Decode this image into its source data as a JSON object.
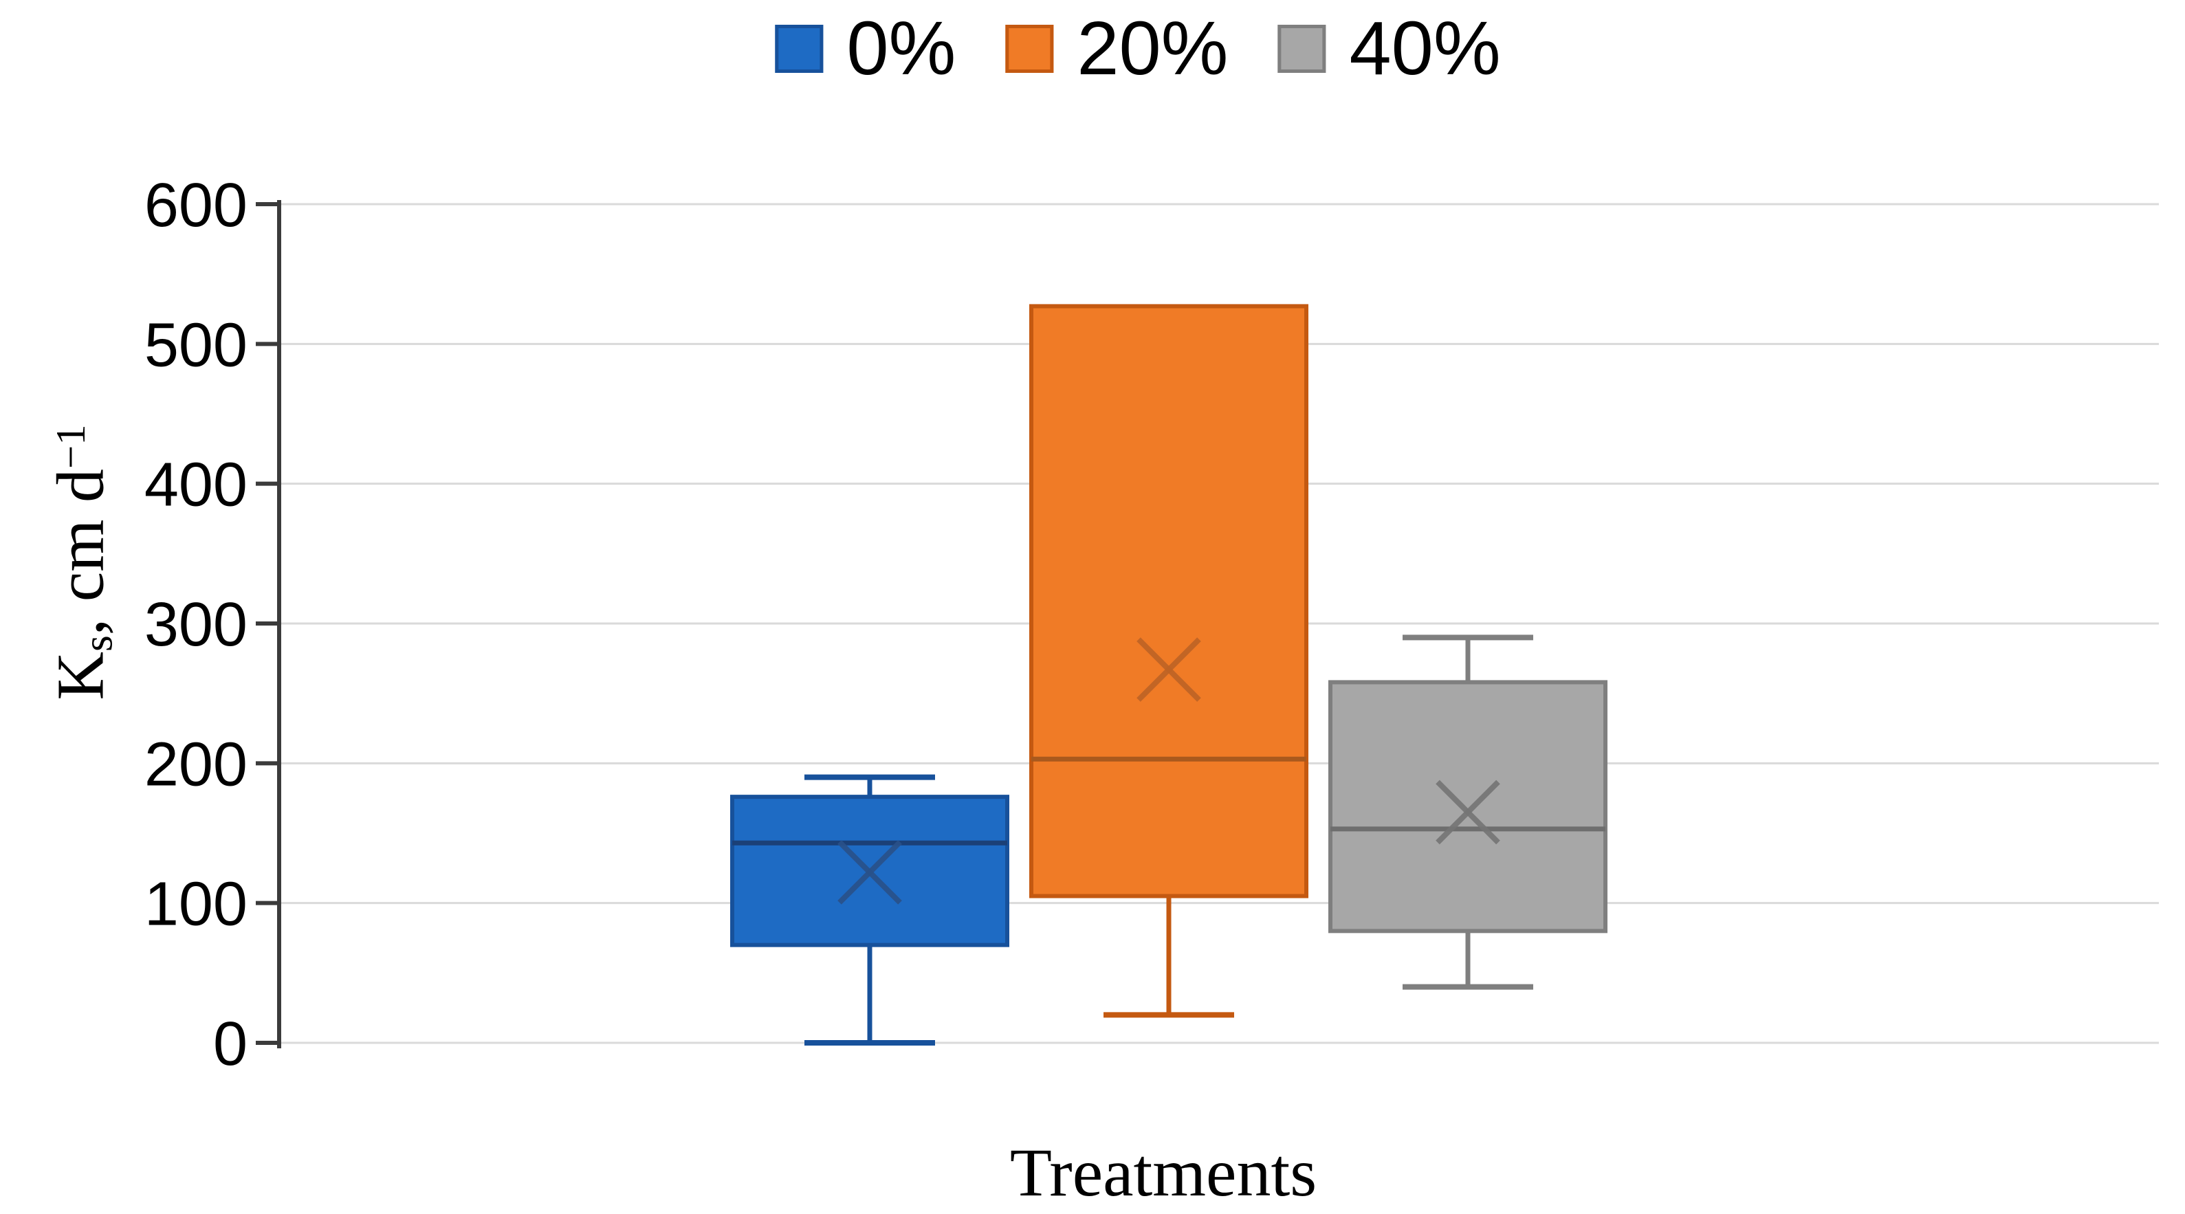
{
  "chart_data": {
    "type": "boxplot",
    "title": "",
    "xlabel": "Treatments",
    "ylabel": "Ks, cm d−1",
    "ylabel_parts": {
      "pre": "K",
      "sub": "s",
      "mid": ", cm d",
      "sup": "−1"
    },
    "y_axis": {
      "min": 0,
      "max": 600,
      "tick_interval": 100,
      "ticks": [
        0,
        100,
        200,
        300,
        400,
        500,
        600
      ]
    },
    "grid": true,
    "legend_position": "top",
    "legend": [
      "0%",
      "20%",
      "40%"
    ],
    "series": [
      {
        "name": "0%",
        "min": 0,
        "q1": 70,
        "median": 143,
        "mean": 122,
        "q3": 176,
        "max": 190,
        "fill_color": "#1E6BC4",
        "border_color": "#17519B",
        "median_color": "#1B4077",
        "mean_color": "#2A5189"
      },
      {
        "name": "20%",
        "min": 20,
        "q1": 105,
        "median": 203,
        "mean": 267,
        "q3": 527,
        "max": 527,
        "fill_color": "#F07B26",
        "border_color": "#C45911",
        "median_color": "#A9591D",
        "mean_color": "#BE6325"
      },
      {
        "name": "40%",
        "min": 40,
        "q1": 80,
        "median": 153,
        "mean": 165,
        "q3": 258,
        "max": 290,
        "fill_color": "#A7A7A7",
        "border_color": "#7F7F7F",
        "median_color": "#6E6E6E",
        "mean_color": "#757575"
      }
    ],
    "gridline_color": "#DADADA",
    "axis_color": "#3B3B3B",
    "text_color": "#000000"
  }
}
